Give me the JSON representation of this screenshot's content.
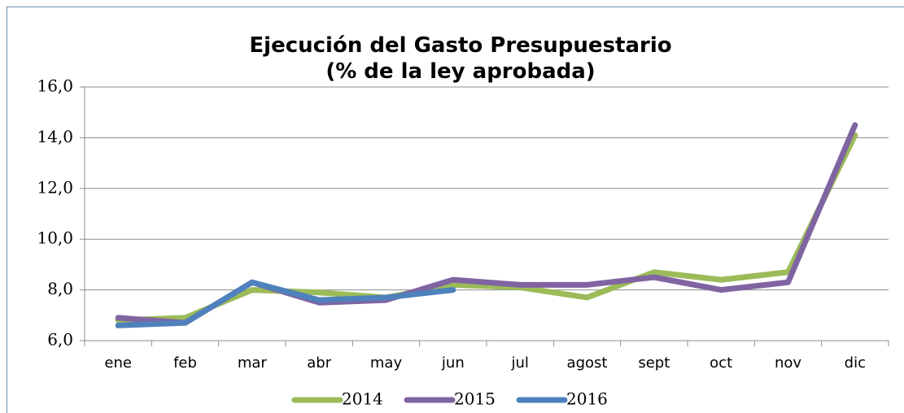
{
  "chart_data": {
    "type": "line",
    "title": "Ejecución del Gasto Presupuestario",
    "subtitle": "(% de la ley aprobada)",
    "categories": [
      "ene",
      "feb",
      "mar",
      "abr",
      "may",
      "jun",
      "jul",
      "agost",
      "sept",
      "oct",
      "nov",
      "dic"
    ],
    "series": [
      {
        "name": "2014",
        "color": "#9bbb59",
        "values": [
          6.8,
          6.9,
          8.0,
          7.9,
          7.7,
          8.2,
          8.1,
          7.7,
          8.7,
          8.4,
          8.7,
          14.1
        ]
      },
      {
        "name": "2015",
        "color": "#8064a2",
        "values": [
          6.9,
          6.7,
          8.3,
          7.5,
          7.6,
          8.4,
          8.2,
          8.2,
          8.5,
          8.0,
          8.3,
          14.5
        ]
      },
      {
        "name": "2016",
        "color": "#4f81bd",
        "values": [
          6.6,
          6.7,
          8.3,
          7.6,
          7.7,
          8.0,
          null,
          null,
          null,
          null,
          null,
          null
        ]
      }
    ],
    "ylim": [
      6,
      16
    ],
    "yticks": [
      {
        "value": 6,
        "label": "6,0"
      },
      {
        "value": 8,
        "label": "8,0"
      },
      {
        "value": 10,
        "label": "10,0"
      },
      {
        "value": 12,
        "label": "12,0"
      },
      {
        "value": 14,
        "label": "14,0"
      },
      {
        "value": 16,
        "label": "16,0"
      }
    ],
    "grid": true,
    "legend": "bottom"
  }
}
